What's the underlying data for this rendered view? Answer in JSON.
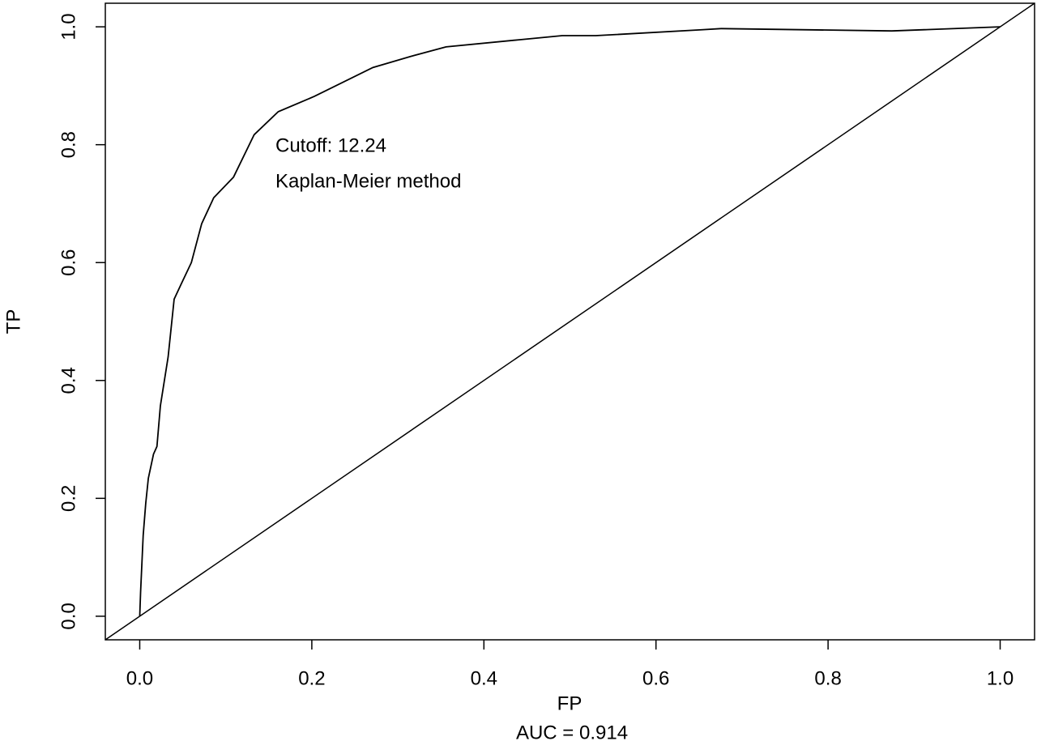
{
  "chart_data": {
    "type": "line",
    "xlabel": "FP",
    "ylabel": "TP",
    "subtitle": "AUC =  0.914",
    "annotations": [
      "Cutoff: 12.24",
      "Kaplan-Meier method"
    ],
    "color": "#000000",
    "reference_line": true,
    "x": [
      0,
      0.001,
      0.004,
      0.007,
      0.01,
      0.016,
      0.02,
      0.024,
      0.033,
      0.04,
      0.048,
      0.06,
      0.072,
      0.086,
      0.109,
      0.133,
      0.161,
      0.203,
      0.271,
      0.318,
      0.356,
      0.441,
      0.491,
      0.53,
      0.653,
      0.676,
      0.874,
      1
    ],
    "values": [
      0,
      0.041,
      0.137,
      0.192,
      0.234,
      0.275,
      0.288,
      0.357,
      0.44,
      0.538,
      0.563,
      0.6,
      0.666,
      0.71,
      0.745,
      0.817,
      0.856,
      0.882,
      0.931,
      0.951,
      0.966,
      0.978,
      0.985,
      0.985,
      0.995,
      0.997,
      0.993,
      1
    ],
    "xlim": [
      -0.04,
      1.04
    ],
    "ylim": [
      -0.04,
      1.04
    ],
    "xticks": [
      {
        "value": 0,
        "label": "0.0"
      },
      0.2,
      0.4,
      0.6,
      0.8,
      {
        "value": 1,
        "label": "1.0"
      }
    ],
    "yticks": [
      {
        "value": 0,
        "label": "0.0"
      },
      0.2,
      0.4,
      0.6,
      0.8,
      {
        "value": 1,
        "label": "1.0"
      }
    ]
  }
}
